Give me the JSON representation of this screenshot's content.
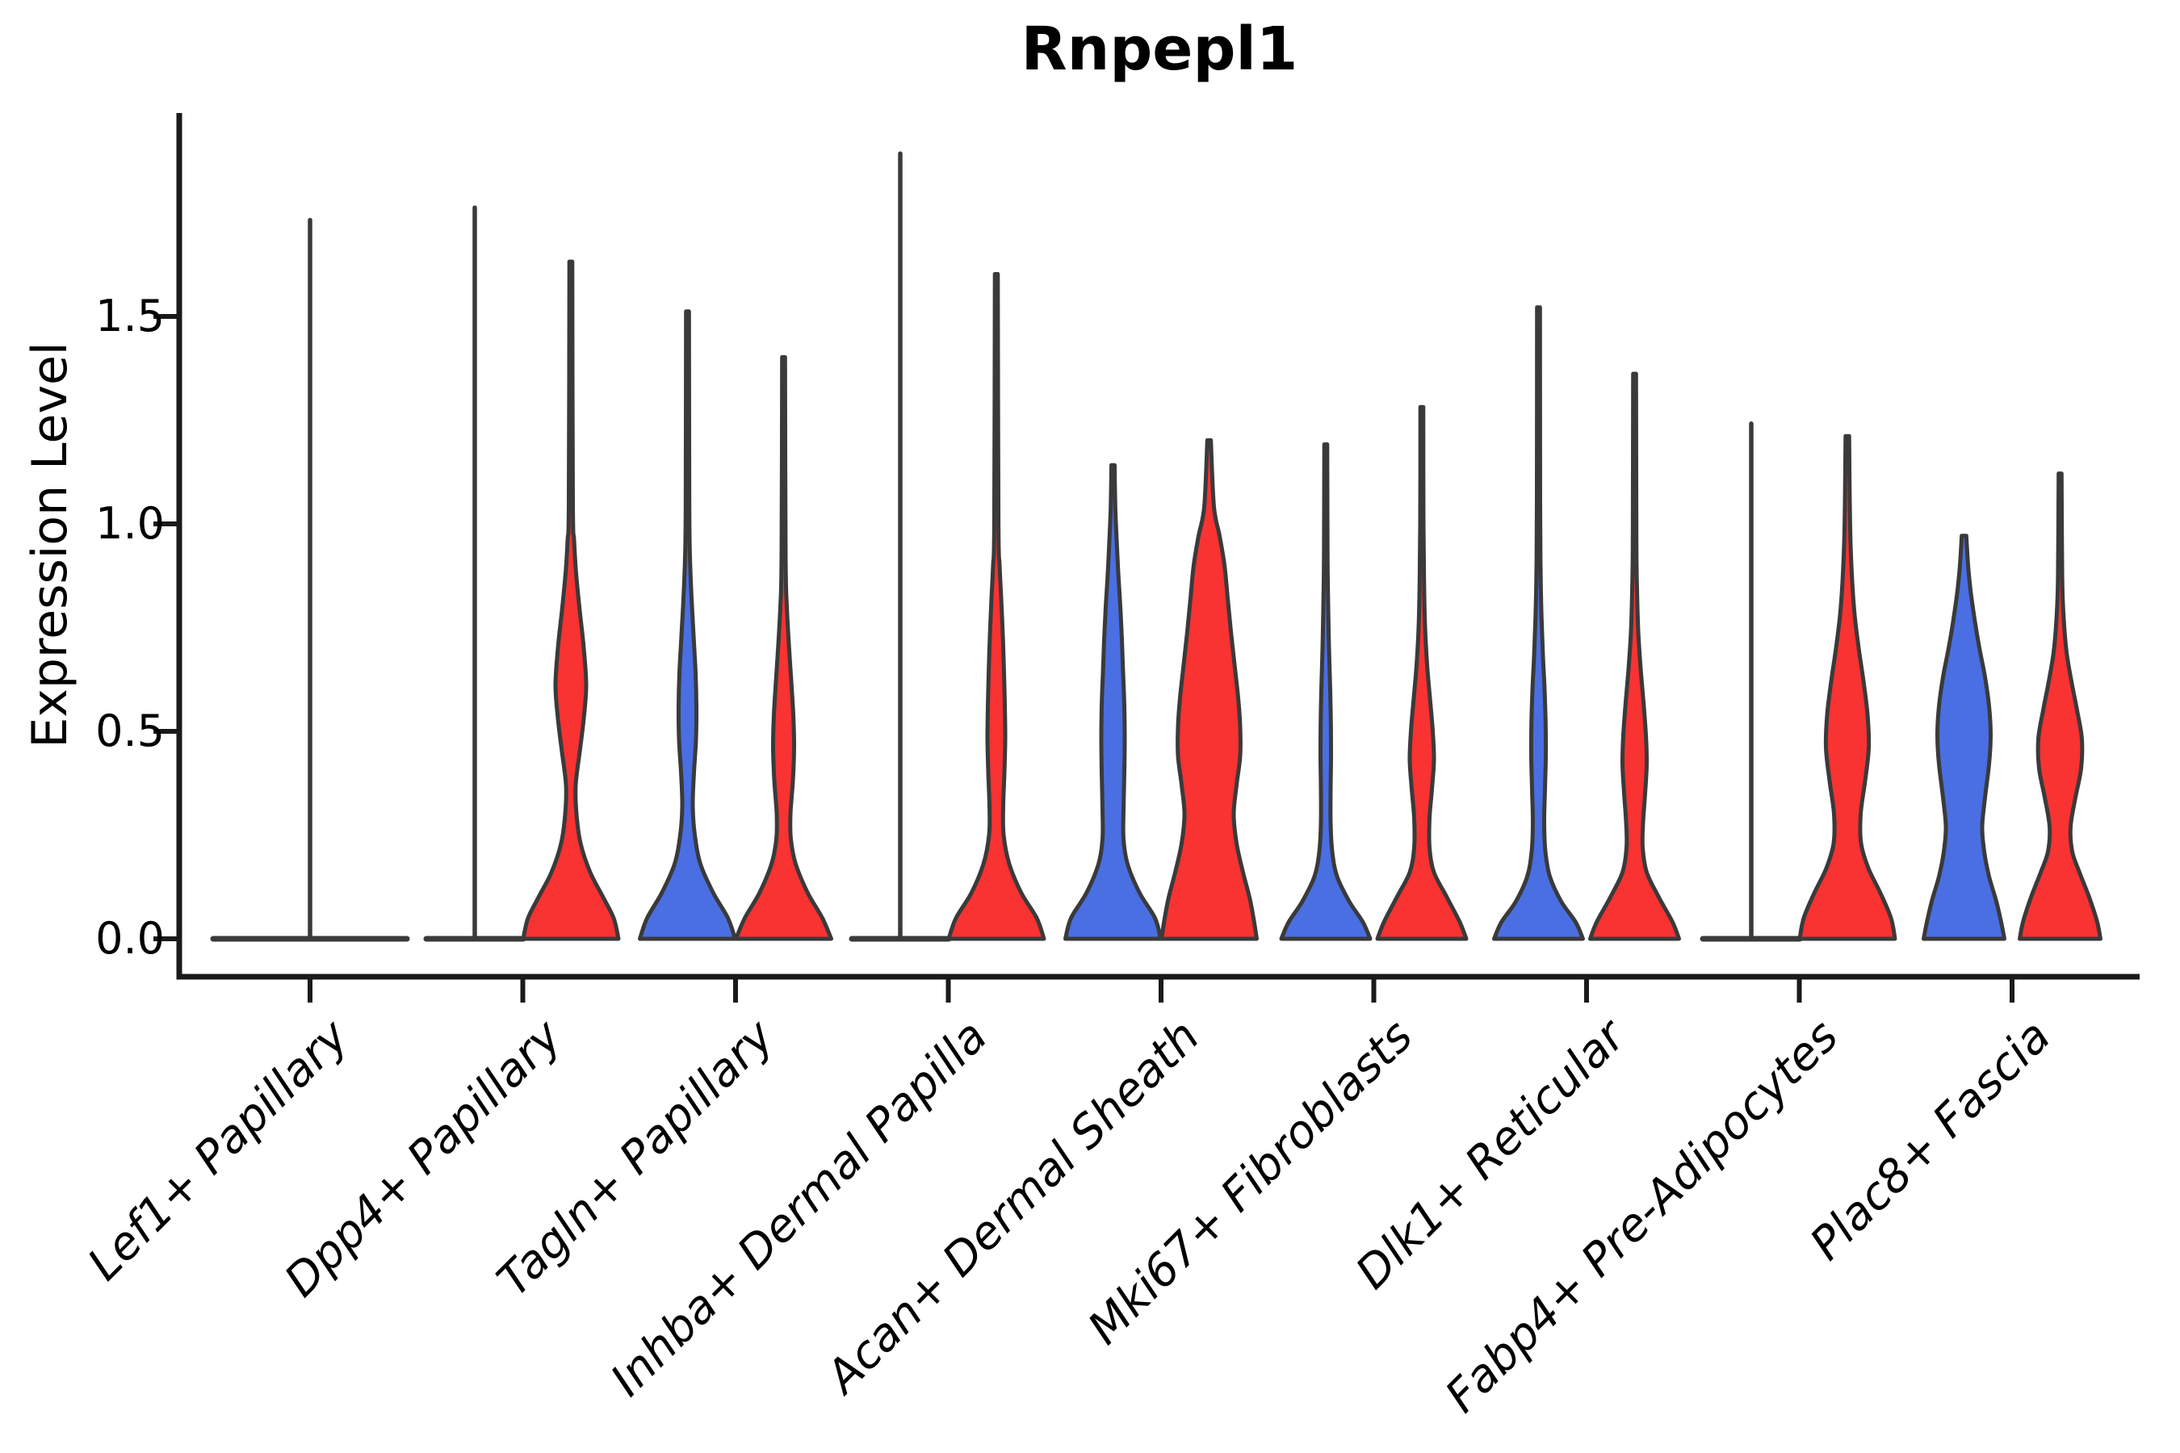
{
  "chart_data": {
    "type": "violin",
    "title": "Rnpepl1",
    "ylabel": "Expression Level",
    "xlabel": "",
    "ylim": [
      -0.09,
      2.0
    ],
    "y_ticks": [
      0.0,
      0.5,
      1.0,
      1.5
    ],
    "y_tick_labels": [
      "0.0",
      "0.5",
      "1.0",
      "1.5"
    ],
    "grid": false,
    "legend_position": "none",
    "split_colors": {
      "blue": "#4A6FE3",
      "red": "#F93232"
    },
    "outline_color": "#3A3A3A",
    "axis_color": "#1A1A1A",
    "categories": [
      "Lef1+ Papillary",
      "Dpp4+ Papillary",
      "Tagln+ Papillary",
      "Inhba+ Dermal Papilla",
      "Acan+ Dermal Sheath",
      "Mki67+ Fibroblasts",
      "Dlk1+ Reticular",
      "Fabp4+ Pre-Adipocytes",
      "Plac8+ Fascia"
    ],
    "violins": [
      {
        "category": "Lef1+ Papillary",
        "cat": 0,
        "side": "full",
        "color": null,
        "collapsed": true,
        "flat_half_width": 120,
        "max": 1.73
      },
      {
        "category": "Dpp4+ Papillary",
        "cat": 1,
        "side": "left",
        "color": "blue",
        "collapsed": true,
        "flat_half_width": 60,
        "max": 1.76
      },
      {
        "category": "Dpp4+ Papillary",
        "cat": 1,
        "side": "right",
        "color": "red",
        "collapsed": false,
        "max": 1.63,
        "profile": [
          [
            0,
            59
          ],
          [
            0.05,
            53
          ],
          [
            0.1,
            40
          ],
          [
            0.16,
            24
          ],
          [
            0.23,
            12
          ],
          [
            0.3,
            7
          ],
          [
            0.37,
            6
          ],
          [
            0.45,
            11
          ],
          [
            0.53,
            16
          ],
          [
            0.61,
            19
          ],
          [
            0.7,
            16
          ],
          [
            0.79,
            11
          ],
          [
            0.88,
            6.5
          ],
          [
            0.96,
            4
          ],
          [
            1.05,
            2.5
          ],
          [
            1.63,
            1.8
          ]
        ]
      },
      {
        "category": "Tagln+ Papillary",
        "cat": 2,
        "side": "left",
        "color": "blue",
        "collapsed": false,
        "max": 1.51,
        "profile": [
          [
            0,
            59
          ],
          [
            0.05,
            50
          ],
          [
            0.11,
            32
          ],
          [
            0.18,
            16
          ],
          [
            0.25,
            9
          ],
          [
            0.32,
            6.5
          ],
          [
            0.4,
            8
          ],
          [
            0.48,
            10.5
          ],
          [
            0.56,
            11
          ],
          [
            0.64,
            10
          ],
          [
            0.73,
            7.5
          ],
          [
            0.82,
            5
          ],
          [
            0.92,
            3
          ],
          [
            1.05,
            2.2
          ],
          [
            1.51,
            1.8
          ]
        ]
      },
      {
        "category": "Tagln+ Papillary",
        "cat": 2,
        "side": "right",
        "color": "red",
        "collapsed": false,
        "max": 1.4,
        "profile": [
          [
            0,
            59
          ],
          [
            0.05,
            48
          ],
          [
            0.11,
            30
          ],
          [
            0.18,
            15
          ],
          [
            0.24,
            9
          ],
          [
            0.3,
            8.5
          ],
          [
            0.38,
            11.5
          ],
          [
            0.46,
            13
          ],
          [
            0.54,
            12
          ],
          [
            0.62,
            9.5
          ],
          [
            0.71,
            6.5
          ],
          [
            0.8,
            4
          ],
          [
            0.92,
            2.5
          ],
          [
            1.4,
            1.8
          ]
        ]
      },
      {
        "category": "Inhba+ Dermal Papilla",
        "cat": 3,
        "side": "left",
        "color": "blue",
        "collapsed": true,
        "flat_half_width": 60,
        "max": 1.89
      },
      {
        "category": "Inhba+ Dermal Papilla",
        "cat": 3,
        "side": "right",
        "color": "red",
        "collapsed": false,
        "max": 1.6,
        "profile": [
          [
            0,
            59
          ],
          [
            0.05,
            50
          ],
          [
            0.11,
            31
          ],
          [
            0.18,
            16
          ],
          [
            0.25,
            9
          ],
          [
            0.32,
            8.5
          ],
          [
            0.4,
            10
          ],
          [
            0.48,
            11
          ],
          [
            0.56,
            10.5
          ],
          [
            0.64,
            9.5
          ],
          [
            0.73,
            8
          ],
          [
            0.82,
            6
          ],
          [
            0.9,
            4
          ],
          [
            1.0,
            2.6
          ],
          [
            1.6,
            1.8
          ]
        ]
      },
      {
        "category": "Acan+ Dermal Sheath",
        "cat": 4,
        "side": "left",
        "color": "blue",
        "collapsed": false,
        "max": 1.14,
        "profile": [
          [
            0,
            59
          ],
          [
            0.05,
            52
          ],
          [
            0.11,
            33
          ],
          [
            0.18,
            18
          ],
          [
            0.24,
            13
          ],
          [
            0.31,
            13
          ],
          [
            0.4,
            14
          ],
          [
            0.48,
            14.5
          ],
          [
            0.56,
            14
          ],
          [
            0.64,
            12.5
          ],
          [
            0.72,
            11
          ],
          [
            0.8,
            9
          ],
          [
            0.88,
            6.5
          ],
          [
            0.96,
            4.5
          ],
          [
            1.04,
            2.8
          ],
          [
            1.14,
            2
          ]
        ]
      },
      {
        "category": "Acan+ Dermal Sheath",
        "cat": 4,
        "side": "right",
        "color": "red",
        "collapsed": false,
        "max": 1.2,
        "profile": [
          [
            0,
            59
          ],
          [
            0.05,
            55
          ],
          [
            0.1,
            50
          ],
          [
            0.16,
            42
          ],
          [
            0.23,
            34
          ],
          [
            0.3,
            30.5
          ],
          [
            0.37,
            34
          ],
          [
            0.44,
            38.5
          ],
          [
            0.51,
            38.5
          ],
          [
            0.58,
            36
          ],
          [
            0.66,
            31.5
          ],
          [
            0.74,
            27
          ],
          [
            0.82,
            23
          ],
          [
            0.9,
            19
          ],
          [
            0.97,
            13
          ],
          [
            1.04,
            6
          ],
          [
            1.2,
            2.2
          ]
        ]
      },
      {
        "category": "Mki67+ Fibroblasts",
        "cat": 5,
        "side": "left",
        "color": "blue",
        "collapsed": false,
        "max": 1.19,
        "profile": [
          [
            0,
            55
          ],
          [
            0.04,
            46
          ],
          [
            0.09,
            29
          ],
          [
            0.15,
            14
          ],
          [
            0.21,
            8
          ],
          [
            0.28,
            6
          ],
          [
            0.36,
            6
          ],
          [
            0.44,
            6.5
          ],
          [
            0.52,
            6.3
          ],
          [
            0.6,
            5.5
          ],
          [
            0.7,
            4
          ],
          [
            0.8,
            3
          ],
          [
            0.92,
            2.2
          ],
          [
            1.19,
            1.8
          ]
        ]
      },
      {
        "category": "Mki67+ Fibroblasts",
        "cat": 5,
        "side": "right",
        "color": "red",
        "collapsed": false,
        "max": 1.28,
        "profile": [
          [
            0,
            55
          ],
          [
            0.04,
            47
          ],
          [
            0.1,
            31
          ],
          [
            0.16,
            15
          ],
          [
            0.22,
            9.5
          ],
          [
            0.29,
            9.5
          ],
          [
            0.36,
            12.5
          ],
          [
            0.43,
            15
          ],
          [
            0.5,
            13.5
          ],
          [
            0.58,
            10
          ],
          [
            0.66,
            6.5
          ],
          [
            0.75,
            4
          ],
          [
            0.85,
            2.8
          ],
          [
            1.0,
            2
          ],
          [
            1.28,
            1.8
          ]
        ]
      },
      {
        "category": "Dlk1+ Reticular",
        "cat": 6,
        "side": "left",
        "color": "blue",
        "collapsed": false,
        "max": 1.52,
        "profile": [
          [
            0,
            55
          ],
          [
            0.04,
            46
          ],
          [
            0.09,
            28
          ],
          [
            0.15,
            14
          ],
          [
            0.21,
            8.5
          ],
          [
            0.28,
            7
          ],
          [
            0.36,
            8
          ],
          [
            0.44,
            9
          ],
          [
            0.52,
            8.8
          ],
          [
            0.6,
            7.5
          ],
          [
            0.68,
            5.5
          ],
          [
            0.77,
            3.8
          ],
          [
            0.88,
            2.6
          ],
          [
            1.05,
            2
          ],
          [
            1.52,
            1.8
          ]
        ]
      },
      {
        "category": "Dlk1+ Reticular",
        "cat": 6,
        "side": "right",
        "color": "red",
        "collapsed": false,
        "max": 1.36,
        "profile": [
          [
            0,
            55
          ],
          [
            0.04,
            47
          ],
          [
            0.1,
            30
          ],
          [
            0.16,
            15
          ],
          [
            0.22,
            10
          ],
          [
            0.28,
            10.5
          ],
          [
            0.35,
            13
          ],
          [
            0.42,
            15
          ],
          [
            0.49,
            14
          ],
          [
            0.57,
            11
          ],
          [
            0.65,
            7.5
          ],
          [
            0.74,
            4.5
          ],
          [
            0.84,
            3
          ],
          [
            0.96,
            2.2
          ],
          [
            1.36,
            1.8
          ]
        ]
      },
      {
        "category": "Fabp4+ Pre-Adipocytes",
        "cat": 7,
        "side": "left",
        "color": "blue",
        "collapsed": true,
        "flat_half_width": 60,
        "max": 1.24
      },
      {
        "category": "Fabp4+ Pre-Adipocytes",
        "cat": 7,
        "side": "right",
        "color": "red",
        "collapsed": false,
        "max": 1.21,
        "profile": [
          [
            0,
            59
          ],
          [
            0.05,
            54
          ],
          [
            0.11,
            41
          ],
          [
            0.17,
            26
          ],
          [
            0.23,
            17
          ],
          [
            0.3,
            16.5
          ],
          [
            0.38,
            22
          ],
          [
            0.46,
            26.5
          ],
          [
            0.54,
            25
          ],
          [
            0.62,
            20
          ],
          [
            0.7,
            14
          ],
          [
            0.78,
            9
          ],
          [
            0.86,
            6
          ],
          [
            0.95,
            4
          ],
          [
            1.05,
            3
          ],
          [
            1.21,
            2.2
          ]
        ]
      },
      {
        "category": "Plac8+ Fascia",
        "cat": 8,
        "side": "left",
        "color": "blue",
        "collapsed": false,
        "max": 0.97,
        "profile": [
          [
            0,
            50
          ],
          [
            0.04,
            46
          ],
          [
            0.09,
            40
          ],
          [
            0.15,
            31
          ],
          [
            0.21,
            25
          ],
          [
            0.27,
            22.5
          ],
          [
            0.34,
            26
          ],
          [
            0.42,
            31
          ],
          [
            0.49,
            33
          ],
          [
            0.56,
            31
          ],
          [
            0.63,
            26
          ],
          [
            0.7,
            19
          ],
          [
            0.77,
            13
          ],
          [
            0.84,
            8
          ],
          [
            0.9,
            5
          ],
          [
            0.97,
            2.8
          ]
        ]
      },
      {
        "category": "Plac8+ Fascia",
        "cat": 8,
        "side": "right",
        "color": "red",
        "collapsed": false,
        "max": 1.12,
        "profile": [
          [
            0,
            50
          ],
          [
            0.04,
            46
          ],
          [
            0.1,
            36
          ],
          [
            0.16,
            24
          ],
          [
            0.21,
            15
          ],
          [
            0.27,
            13
          ],
          [
            0.34,
            19
          ],
          [
            0.41,
            26
          ],
          [
            0.48,
            27
          ],
          [
            0.55,
            21
          ],
          [
            0.62,
            14
          ],
          [
            0.69,
            8
          ],
          [
            0.77,
            4.5
          ],
          [
            0.87,
            2.6
          ],
          [
            1.12,
            1.8
          ]
        ]
      }
    ]
  }
}
